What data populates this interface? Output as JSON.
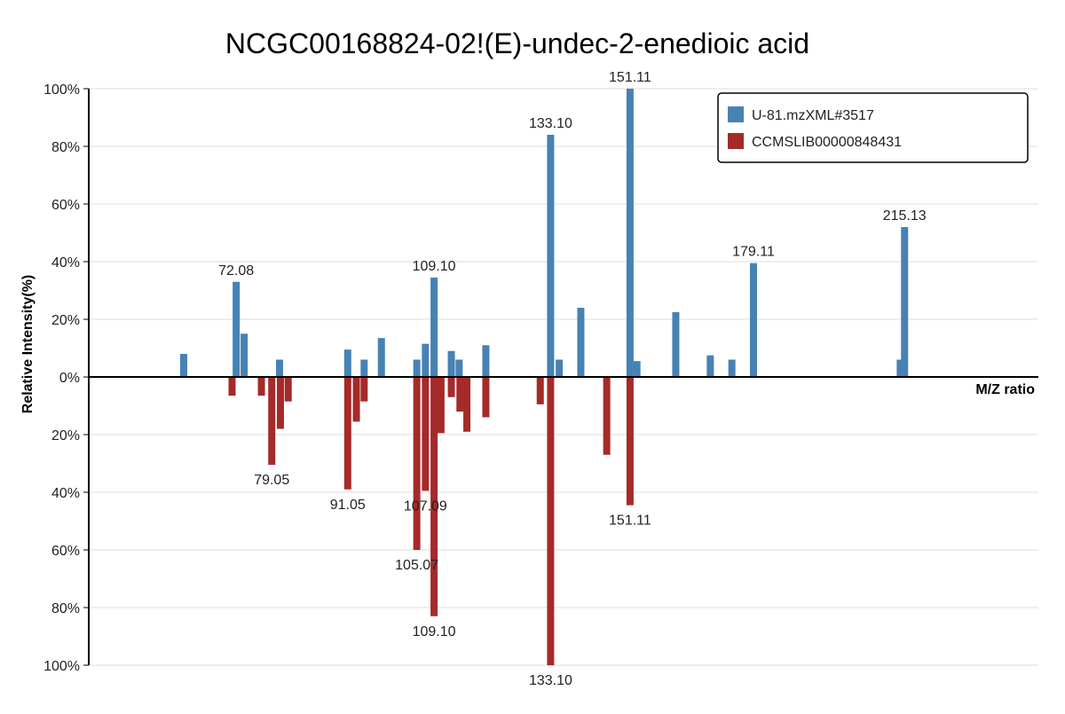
{
  "chart_data": {
    "type": "bar",
    "title": "NCGC00168824-02!(E)-undec-2-enedioic acid",
    "xlabel": "M/Z ratio",
    "ylabel": "Relative Intensity(%)",
    "yticks_top": [
      "100%",
      "80%",
      "60%",
      "40%",
      "20%",
      "0%"
    ],
    "yticks_bottom": [
      "20%",
      "40%",
      "60%",
      "80%",
      "100%"
    ],
    "ylim": [
      -100,
      100
    ],
    "grid": true,
    "legend_position": "top-right",
    "series": [
      {
        "name": "U-81.mzXML#3517",
        "color": "#4682b4",
        "direction": "up",
        "points": [
          {
            "mz": 66.0,
            "intensity": 8
          },
          {
            "mz": 72.08,
            "intensity": 33,
            "label": "72.08"
          },
          {
            "mz": 73.0,
            "intensity": 15
          },
          {
            "mz": 77.1,
            "intensity": 6
          },
          {
            "mz": 85.0,
            "intensity": 9.5
          },
          {
            "mz": 86.9,
            "intensity": 6
          },
          {
            "mz": 88.9,
            "intensity": 13.5
          },
          {
            "mz": 93.0,
            "intensity": 6
          },
          {
            "mz": 94.0,
            "intensity": 11.5
          },
          {
            "mz": 95.0,
            "intensity": 34.5,
            "label": "109.10"
          },
          {
            "mz": 97.0,
            "intensity": 9
          },
          {
            "mz": 97.9,
            "intensity": 6
          },
          {
            "mz": 101.0,
            "intensity": 11
          },
          {
            "mz": 108.5,
            "intensity": 84,
            "label": "133.10"
          },
          {
            "mz": 109.5,
            "intensity": 6
          },
          {
            "mz": 112.0,
            "intensity": 24
          },
          {
            "mz": 117.7,
            "intensity": 100,
            "label": "151.11"
          },
          {
            "mz": 118.5,
            "intensity": 5.5
          },
          {
            "mz": 123.0,
            "intensity": 22.5
          },
          {
            "mz": 127.0,
            "intensity": 7.5
          },
          {
            "mz": 129.5,
            "intensity": 6
          },
          {
            "mz": 132.0,
            "intensity": 39.5,
            "label": "179.11"
          },
          {
            "mz": 149.0,
            "intensity": 6
          },
          {
            "mz": 149.5,
            "intensity": 52,
            "label": "215.13"
          }
        ]
      },
      {
        "name": "CCMSLIB00000848431",
        "color": "#a52a2a",
        "direction": "down",
        "points": [
          {
            "mz": 71.6,
            "intensity": 6.5
          },
          {
            "mz": 75.0,
            "intensity": 6.5
          },
          {
            "mz": 76.2,
            "intensity": 30.5,
            "label": "79.05"
          },
          {
            "mz": 77.2,
            "intensity": 18
          },
          {
            "mz": 78.1,
            "intensity": 8.5
          },
          {
            "mz": 85.0,
            "intensity": 39,
            "label": "91.05"
          },
          {
            "mz": 86.0,
            "intensity": 15.5
          },
          {
            "mz": 86.9,
            "intensity": 8.5
          },
          {
            "mz": 93.0,
            "intensity": 60,
            "label": "105.07"
          },
          {
            "mz": 94.0,
            "intensity": 39.5,
            "label": "107.09"
          },
          {
            "mz": 95.0,
            "intensity": 83,
            "label": "109.10"
          },
          {
            "mz": 95.8,
            "intensity": 19.5
          },
          {
            "mz": 97.0,
            "intensity": 7
          },
          {
            "mz": 98.0,
            "intensity": 12
          },
          {
            "mz": 98.8,
            "intensity": 19
          },
          {
            "mz": 101.0,
            "intensity": 14
          },
          {
            "mz": 107.3,
            "intensity": 9.5
          },
          {
            "mz": 108.5,
            "intensity": 100,
            "label": "133.10"
          },
          {
            "mz": 115.0,
            "intensity": 27
          },
          {
            "mz": 117.7,
            "intensity": 44.5,
            "label": "151.11"
          }
        ]
      }
    ]
  }
}
